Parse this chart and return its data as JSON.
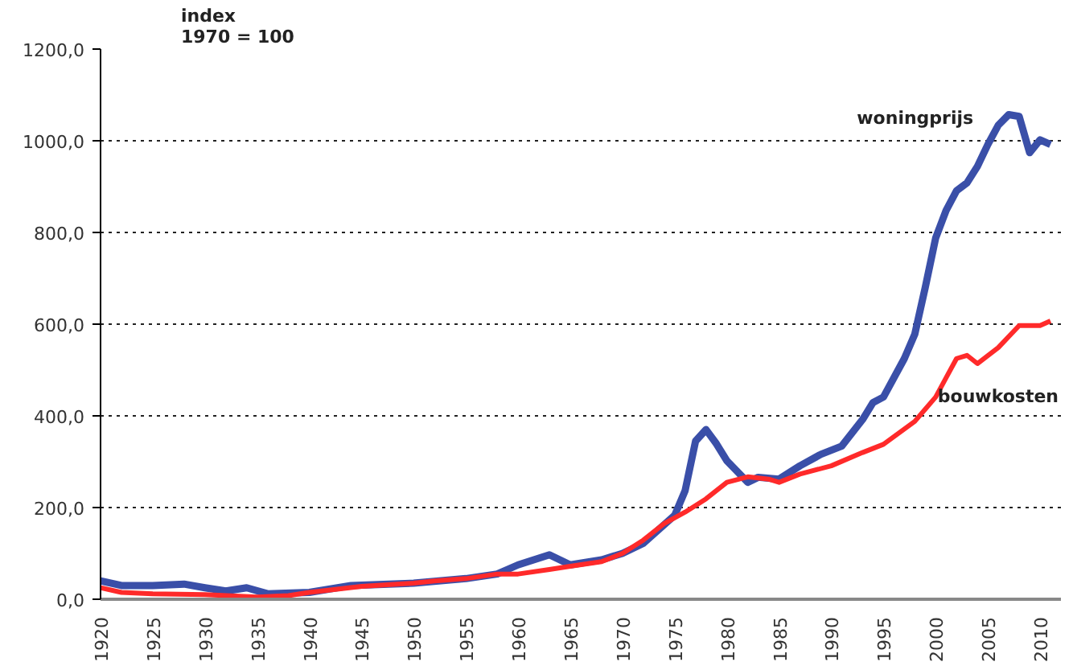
{
  "chart_data": {
    "type": "line",
    "ylabel": "index\n1970 = 100",
    "xlim": [
      1920,
      2012
    ],
    "ylim": [
      0,
      1200
    ],
    "xticks": [
      1920,
      1925,
      1930,
      1935,
      1940,
      1945,
      1950,
      1955,
      1960,
      1965,
      1970,
      1975,
      1980,
      1985,
      1990,
      1995,
      2000,
      2005,
      2010
    ],
    "yticks": [
      {
        "value": 0,
        "label": "0,0"
      },
      {
        "value": 200,
        "label": "200,0"
      },
      {
        "value": 400,
        "label": "400,0"
      },
      {
        "value": 600,
        "label": "600,0"
      },
      {
        "value": 800,
        "label": "800,0"
      },
      {
        "value": 1000,
        "label": "1000,0"
      },
      {
        "value": 1200,
        "label": "1200,0"
      }
    ],
    "grid": "y",
    "legend": false,
    "marker": "none",
    "line_style": "solid",
    "series": [
      {
        "name": "woningprijs",
        "color": "#3a4fa8",
        "x": [
          1920,
          1922,
          1925,
          1928,
          1930,
          1932,
          1934,
          1936,
          1940,
          1944,
          1950,
          1955,
          1958,
          1960,
          1963,
          1965,
          1968,
          1970,
          1972,
          1975,
          1976,
          1977,
          1978,
          1979,
          1980,
          1982,
          1983,
          1985,
          1987,
          1989,
          1991,
          1993,
          1994,
          1995,
          1997,
          1998,
          1999,
          2000,
          2001,
          2002,
          2003,
          2004,
          2005,
          2006,
          2007,
          2008,
          2009,
          2010,
          2011
        ],
        "values": [
          40,
          30,
          30,
          33,
          25,
          18,
          25,
          12,
          15,
          30,
          35,
          45,
          55,
          75,
          97,
          75,
          86,
          100,
          122,
          183,
          237,
          345,
          370,
          339,
          302,
          255,
          266,
          262,
          291,
          316,
          334,
          392,
          429,
          441,
          525,
          578,
          680,
          788,
          848,
          891,
          908,
          944,
          992,
          1034,
          1057,
          1053,
          974,
          1002,
          992
        ]
      },
      {
        "name": "bouwkosten",
        "color": "#ff2a2a",
        "x": [
          1920,
          1922,
          1925,
          1930,
          1935,
          1938,
          1940,
          1945,
          1950,
          1952,
          1955,
          1958,
          1960,
          1963,
          1965,
          1968,
          1970,
          1972,
          1974,
          1976,
          1978,
          1980,
          1982,
          1984,
          1985,
          1987,
          1990,
          1993,
          1995,
          1998,
          2000,
          2001,
          2002,
          2003,
          2004,
          2006,
          2008,
          2010,
          2011
        ],
        "values": [
          25,
          15,
          12,
          10,
          5,
          8,
          15,
          28,
          35,
          40,
          45,
          55,
          55,
          65,
          72,
          82,
          100,
          129,
          165,
          190,
          219,
          255,
          267,
          262,
          255,
          273,
          291,
          320,
          338,
          388,
          441,
          483,
          525,
          532,
          514,
          549,
          597,
          597,
          607
        ]
      }
    ]
  }
}
